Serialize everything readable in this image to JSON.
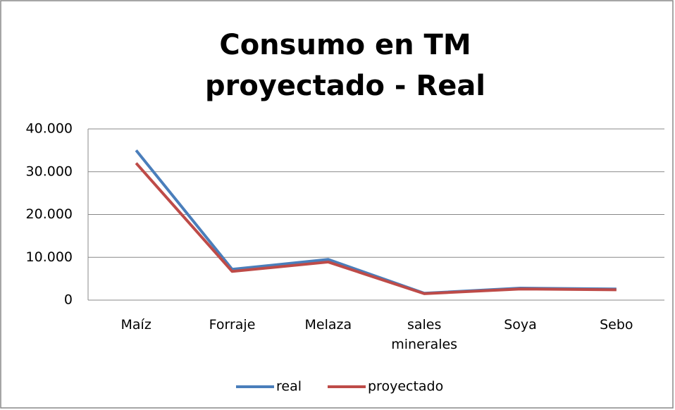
{
  "chart_data": {
    "type": "line",
    "title": [
      "Consumo en TM",
      "proyectado - Real"
    ],
    "categories": [
      "Maíz",
      "Forraje",
      "Melaza",
      "sales minerales",
      "Soya",
      "Sebo"
    ],
    "series": [
      {
        "name": "real",
        "color": "#4a7ebb",
        "values": [
          35000,
          7200,
          9500,
          1600,
          2800,
          2600
        ]
      },
      {
        "name": "proyectado",
        "color": "#be4b48",
        "values": [
          32000,
          6700,
          8900,
          1500,
          2600,
          2400
        ]
      }
    ],
    "ylim": [
      0,
      40000
    ],
    "yticks": [
      0,
      {
        "value": 10000,
        "label": "10.000"
      },
      {
        "value": 20000,
        "label": "20.000"
      },
      {
        "value": 30000,
        "label": "30.000"
      },
      {
        "value": 40000,
        "label": "40.000"
      }
    ],
    "grid": true,
    "legend": "bottom"
  }
}
